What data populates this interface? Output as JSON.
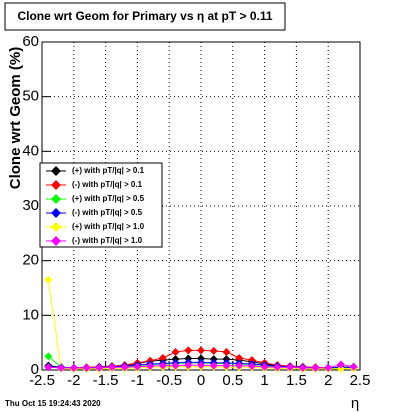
{
  "chart_data": {
    "type": "line",
    "title": "Clone wrt Geom for Primary vs   η at pT > 0.11",
    "y_label": "Clone wrt Geom (%)",
    "x_label": "η",
    "footer": "Thu Oct 15 19:24:43 2020",
    "xlim": [
      -2.5,
      2.5
    ],
    "xticks": [
      -2.5,
      -2,
      -1.5,
      -1,
      -0.5,
      0,
      0.5,
      1,
      1.5,
      2,
      2.5
    ],
    "ylim": [
      0,
      60
    ],
    "yticks": [
      0,
      10,
      20,
      30,
      40,
      50,
      60
    ],
    "grid": true,
    "legend": "left",
    "x": [
      -2.4,
      -2.2,
      -2.0,
      -1.8,
      -1.6,
      -1.4,
      -1.2,
      -1.0,
      -0.8,
      -0.6,
      -0.4,
      -0.2,
      0,
      0.2,
      0.4,
      0.6,
      0.8,
      1.0,
      1.2,
      1.4,
      1.6,
      1.8,
      2.0,
      2.2,
      2.4
    ],
    "series": [
      {
        "name": "(+) with pT/|q| > 0.1",
        "color": "#000000",
        "values": [
          0.8,
          0.5,
          0.4,
          0.4,
          0.5,
          0.6,
          0.8,
          1.2,
          1.6,
          1.8,
          2.0,
          2.1,
          2.1,
          2.0,
          2.0,
          1.8,
          1.5,
          1.1,
          0.8,
          0.6,
          0.5,
          0.4,
          0.4,
          0.5,
          0.6
        ]
      },
      {
        "name": "(-) with pT/|q| > 0.1",
        "color": "#ff0000",
        "values": [
          0.5,
          0.4,
          0.4,
          0.5,
          0.6,
          0.7,
          0.9,
          1.3,
          1.7,
          2.2,
          3.3,
          3.6,
          3.6,
          3.5,
          3.3,
          2.2,
          1.8,
          1.3,
          0.9,
          0.7,
          0.6,
          0.5,
          0.4,
          0.4,
          0.5
        ]
      },
      {
        "name": "(+) with pT/|q| > 0.5",
        "color": "#00ff00",
        "values": [
          2.5,
          0.5,
          0.4,
          0.4,
          0.4,
          0.5,
          0.6,
          0.8,
          1.0,
          1.1,
          1.2,
          1.3,
          1.3,
          1.2,
          1.2,
          1.1,
          1.0,
          0.8,
          0.6,
          0.5,
          0.4,
          0.4,
          0.3,
          0.4,
          0.6
        ]
      },
      {
        "name": "(-) with pT/|q| > 0.5",
        "color": "#0000ff",
        "values": [
          0.6,
          0.5,
          0.4,
          0.4,
          0.5,
          0.6,
          0.7,
          0.9,
          1.1,
          1.2,
          1.3,
          1.4,
          1.4,
          1.3,
          1.3,
          1.2,
          1.1,
          0.9,
          0.7,
          0.6,
          0.5,
          0.4,
          0.4,
          0.5,
          0.5
        ]
      },
      {
        "name": "(+) with pT/|q| > 1.0",
        "color": "#ffff00",
        "values": [
          16.5,
          0.3,
          0.2,
          0.2,
          0.2,
          0.3,
          0.3,
          0.4,
          0.5,
          0.5,
          0.6,
          0.6,
          0.6,
          0.6,
          0.5,
          0.5,
          0.5,
          0.4,
          0.3,
          0.3,
          0.2,
          0.2,
          0.2,
          0.2,
          0.3
        ]
      },
      {
        "name": "(-) with pT/|q| > 1.0",
        "color": "#ff00ff",
        "values": [
          0.5,
          0.4,
          0.4,
          0.4,
          0.4,
          0.5,
          0.5,
          0.6,
          0.7,
          0.8,
          0.8,
          0.9,
          0.9,
          0.8,
          0.8,
          0.8,
          0.7,
          0.6,
          0.5,
          0.5,
          0.4,
          0.4,
          0.4,
          1.0,
          0.6
        ]
      }
    ]
  }
}
